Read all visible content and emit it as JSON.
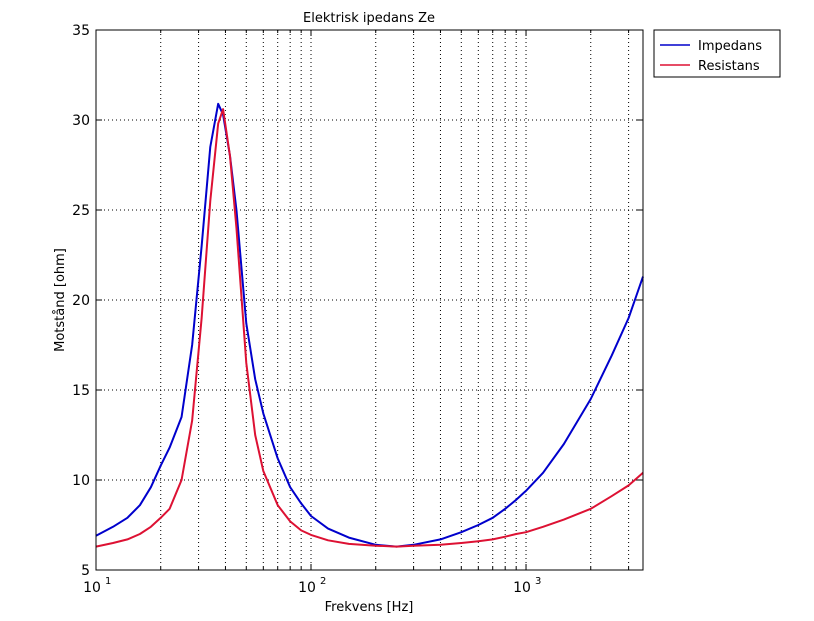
{
  "chart_data": {
    "type": "line",
    "title": "Elektrisk ipedans Ze",
    "xlabel": "Frekvens [Hz]",
    "ylabel": "Motstånd [ohm]",
    "xscale": "log",
    "xlim": [
      10,
      3500
    ],
    "ylim": [
      5,
      35
    ],
    "yticks": [
      5,
      10,
      15,
      20,
      25,
      30,
      35
    ],
    "xticks_major": [
      {
        "value": 10,
        "base": "10",
        "exp": "1"
      },
      {
        "value": 100,
        "base": "10",
        "exp": "2"
      },
      {
        "value": 1000,
        "base": "10",
        "exp": "3"
      }
    ],
    "grid": true,
    "legend_position": "outside-top-right",
    "series": [
      {
        "name": "Impedans",
        "color": "#0000cc",
        "x": [
          10,
          12,
          14,
          16,
          18,
          20,
          22,
          25,
          28,
          31,
          34,
          37,
          39,
          42,
          45,
          50,
          55,
          60,
          70,
          80,
          90,
          100,
          120,
          150,
          200,
          250,
          300,
          400,
          500,
          600,
          700,
          800,
          900,
          1000,
          1200,
          1500,
          2000,
          2500,
          3000,
          3500
        ],
        "y": [
          6.9,
          7.4,
          7.9,
          8.6,
          9.6,
          10.8,
          11.8,
          13.5,
          17.5,
          23.0,
          28.5,
          30.9,
          30.3,
          28.0,
          25.0,
          18.7,
          15.6,
          13.7,
          11.2,
          9.6,
          8.7,
          8.0,
          7.3,
          6.8,
          6.4,
          6.3,
          6.4,
          6.7,
          7.1,
          7.5,
          7.9,
          8.4,
          8.9,
          9.4,
          10.4,
          12.0,
          14.5,
          16.9,
          19.0,
          21.3
        ]
      },
      {
        "name": "Resistans",
        "color": "#dd1133",
        "x": [
          10,
          12,
          14,
          16,
          18,
          20,
          22,
          25,
          28,
          31,
          34,
          37,
          39,
          42,
          45,
          50,
          55,
          60,
          70,
          80,
          90,
          100,
          120,
          150,
          200,
          250,
          300,
          400,
          500,
          600,
          700,
          800,
          900,
          1000,
          1200,
          1500,
          2000,
          2500,
          3000,
          3500
        ],
        "y": [
          6.3,
          6.5,
          6.7,
          7.0,
          7.4,
          7.9,
          8.4,
          10.0,
          13.3,
          19.0,
          25.5,
          29.8,
          30.6,
          28.0,
          24.0,
          16.5,
          12.5,
          10.5,
          8.6,
          7.7,
          7.2,
          6.95,
          6.65,
          6.45,
          6.35,
          6.3,
          6.35,
          6.4,
          6.5,
          6.6,
          6.7,
          6.85,
          7.0,
          7.1,
          7.4,
          7.8,
          8.4,
          9.1,
          9.7,
          10.4
        ]
      }
    ]
  }
}
